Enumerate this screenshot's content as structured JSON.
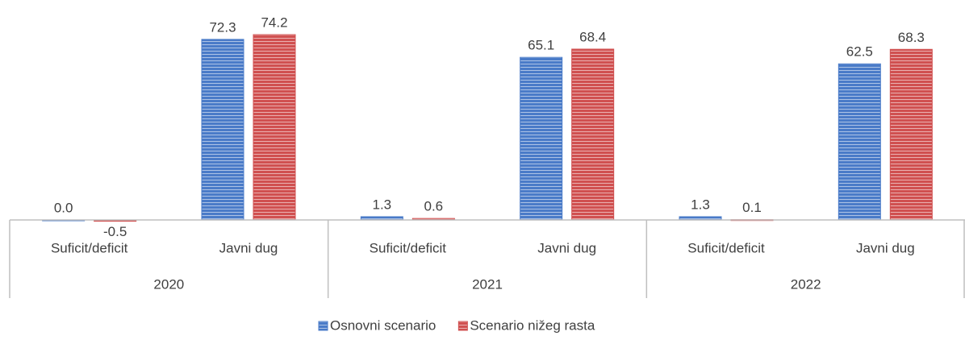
{
  "chart_data": {
    "type": "bar",
    "categories": [
      "Suficit/deficit",
      "Javni dug",
      "Suficit/deficit",
      "Javni dug",
      "Suficit/deficit",
      "Javni dug"
    ],
    "groups": [
      "2020",
      "2021",
      "2022"
    ],
    "series": [
      {
        "name": "Osnovni scenario",
        "color": "#4a7bc8",
        "values": [
          0.0,
          72.3,
          1.3,
          65.1,
          1.3,
          62.5
        ],
        "value_labels": [
          "0.0",
          "72.3",
          "1.3",
          "65.1",
          "1.3",
          "62.5"
        ]
      },
      {
        "name": "Scenario nižeg rasta",
        "color": "#d05050",
        "values": [
          -0.5,
          74.2,
          0.6,
          68.4,
          0.1,
          68.3
        ],
        "value_labels": [
          "-0.5",
          "74.2",
          "0.6",
          "68.4",
          "0.1",
          "68.3"
        ]
      }
    ],
    "ylim": [
      -10,
      80
    ]
  }
}
